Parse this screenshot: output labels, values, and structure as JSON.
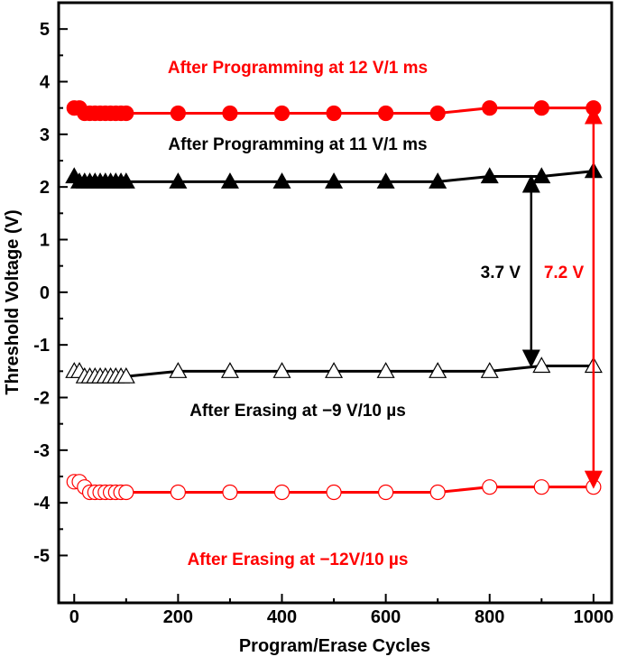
{
  "chart_data": {
    "type": "line",
    "xlabel": "Program/Erase Cycles",
    "ylabel": "Threshold Voltage (V)",
    "xlim": [
      -30,
      1035
    ],
    "ylim": [
      -5.9,
      5.5
    ],
    "xticks": [
      0,
      200,
      400,
      600,
      800,
      1000
    ],
    "yticks": [
      5,
      4,
      3,
      2,
      1,
      0,
      -1,
      -2,
      -3,
      -4,
      -5
    ],
    "grid": false,
    "x": [
      0,
      10,
      20,
      30,
      40,
      50,
      60,
      70,
      80,
      90,
      100,
      200,
      300,
      400,
      500,
      600,
      700,
      800,
      900,
      1000
    ],
    "series": [
      {
        "label": "After Programming at 12 V/1 ms",
        "color": "#ff0000",
        "marker": "filled-circle",
        "values": [
          3.5,
          3.5,
          3.4,
          3.4,
          3.4,
          3.4,
          3.4,
          3.4,
          3.4,
          3.4,
          3.4,
          3.4,
          3.4,
          3.4,
          3.4,
          3.4,
          3.4,
          3.5,
          3.5,
          3.5
        ]
      },
      {
        "label": "After Programming at 11 V/1 ms",
        "color": "#000000",
        "marker": "filled-triangle",
        "values": [
          2.2,
          2.1,
          2.1,
          2.1,
          2.1,
          2.1,
          2.1,
          2.1,
          2.1,
          2.1,
          2.1,
          2.1,
          2.1,
          2.1,
          2.1,
          2.1,
          2.1,
          2.2,
          2.2,
          2.3
        ]
      },
      {
        "label": "After Erasing at −9 V/10 µs",
        "color": "#000000",
        "marker": "open-triangle",
        "values": [
          -1.5,
          -1.5,
          -1.6,
          -1.6,
          -1.6,
          -1.6,
          -1.6,
          -1.6,
          -1.6,
          -1.6,
          -1.6,
          -1.5,
          -1.5,
          -1.5,
          -1.5,
          -1.5,
          -1.5,
          -1.5,
          -1.4,
          -1.4
        ]
      },
      {
        "label": "After Erasing at −12V/10 µs",
        "color": "#ff0000",
        "marker": "open-circle",
        "values": [
          -3.6,
          -3.6,
          -3.7,
          -3.8,
          -3.8,
          -3.8,
          -3.8,
          -3.8,
          -3.8,
          -3.8,
          -3.8,
          -3.8,
          -3.8,
          -3.8,
          -3.8,
          -3.8,
          -3.8,
          -3.7,
          -3.7,
          -3.7
        ]
      }
    ],
    "annotations": [
      {
        "text": "3.7 V",
        "color": "#000000",
        "arrow_x": 880,
        "from": 2.2,
        "to": -1.4
      },
      {
        "text": "7.2 V",
        "color": "#ff0000",
        "arrow_x": 1000,
        "from": 3.5,
        "to": -3.7
      }
    ]
  }
}
